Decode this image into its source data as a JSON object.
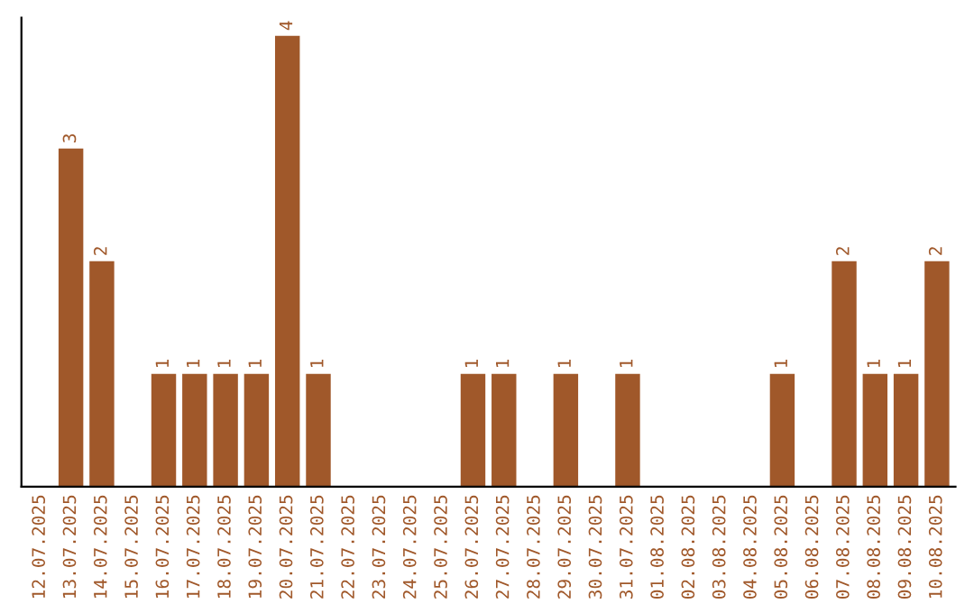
{
  "chart_data": {
    "type": "bar",
    "categories": [
      "12.07.2025",
      "13.07.2025",
      "14.07.2025",
      "15.07.2025",
      "16.07.2025",
      "17.07.2025",
      "18.07.2025",
      "19.07.2025",
      "20.07.2025",
      "21.07.2025",
      "22.07.2025",
      "23.07.2025",
      "24.07.2025",
      "25.07.2025",
      "26.07.2025",
      "27.07.2025",
      "28.07.2025",
      "29.07.2025",
      "30.07.2025",
      "31.07.2025",
      "01.08.2025",
      "02.08.2025",
      "03.08.2025",
      "04.08.2025",
      "05.08.2025",
      "06.08.2025",
      "07.08.2025",
      "08.08.2025",
      "09.08.2025",
      "10.08.2025"
    ],
    "values": [
      0,
      3,
      2,
      0,
      1,
      1,
      1,
      1,
      4,
      1,
      0,
      0,
      0,
      0,
      1,
      1,
      0,
      1,
      0,
      1,
      0,
      0,
      0,
      0,
      1,
      0,
      2,
      1,
      1,
      2
    ],
    "value_labels": [
      null,
      "3",
      "2",
      null,
      "1",
      "1",
      "1",
      "1",
      "4",
      "1",
      null,
      null,
      null,
      null,
      "1",
      "1",
      null,
      "1",
      null,
      "1",
      null,
      null,
      null,
      null,
      "1",
      null,
      "2",
      "1",
      "1",
      "2"
    ],
    "color": "#a0582a",
    "tick_labels": "x",
    "grid": false
  }
}
